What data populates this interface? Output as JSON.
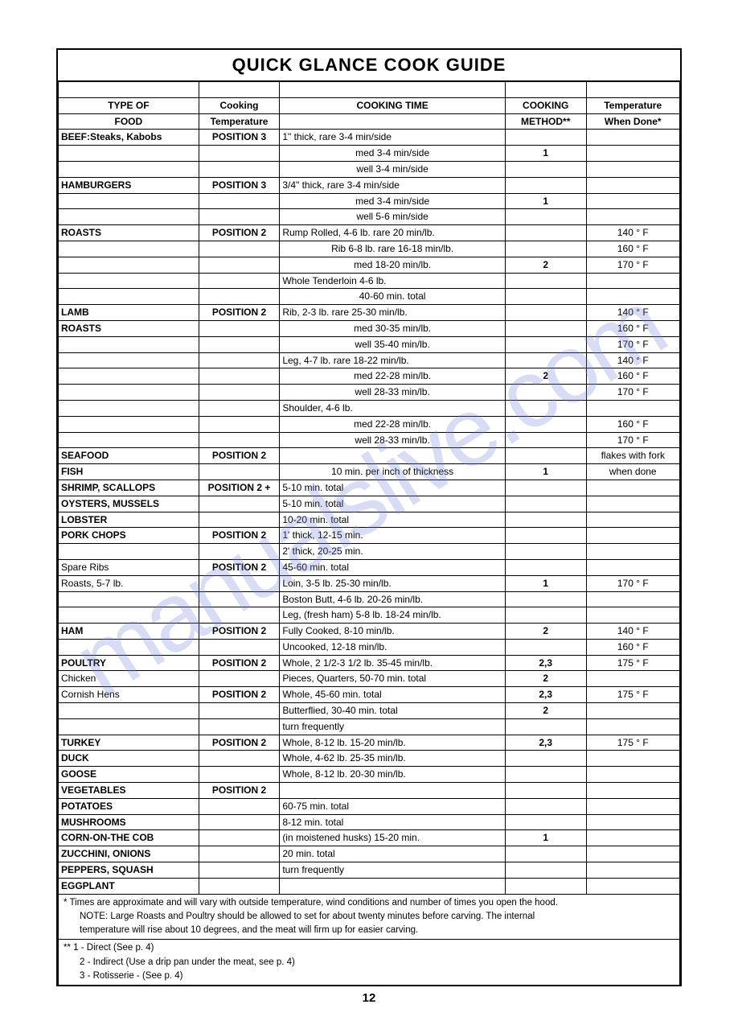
{
  "watermark": "manualslive.com",
  "title": "QUICK GLANCE COOK GUIDE",
  "page_number": "12",
  "table": {
    "col_widths": {
      "food": 165,
      "cooking": 95,
      "time": 265,
      "method": 95,
      "temp": 110
    },
    "header1": {
      "food": "TYPE OF",
      "cooking": "Cooking",
      "time": "COOKING TIME",
      "method": "COOKING",
      "temp": "Temperature"
    },
    "header2": {
      "food": "FOOD",
      "cooking": "Temperature",
      "time": "",
      "method": "METHOD**",
      "temp": "When Done*"
    },
    "rows": [
      {
        "food": "BEEF:Steaks, Kabobs",
        "food_bold": true,
        "cooking": "POSITION 3",
        "cooking_bold": true,
        "time": "1\" thick, rare 3-4 min/side",
        "time_align": "left",
        "method": "",
        "temp": ""
      },
      {
        "food": "",
        "cooking": "",
        "time": "med 3-4 min/side",
        "time_align": "center",
        "method": "1",
        "method_bold": true,
        "method_align": "center",
        "temp": ""
      },
      {
        "food": "",
        "cooking": "",
        "time": "well 3-4 min/side",
        "time_align": "center",
        "method": "",
        "temp": ""
      },
      {
        "food": "HAMBURGERS",
        "food_bold": true,
        "cooking": "POSITION 3",
        "cooking_bold": true,
        "time": "3/4\" thick, rare 3-4 min/side",
        "time_align": "left",
        "method": "",
        "temp": ""
      },
      {
        "food": "",
        "cooking": "",
        "time": "med 3-4 min/side",
        "time_align": "center",
        "method": "1",
        "method_bold": true,
        "method_align": "center",
        "temp": ""
      },
      {
        "food": "",
        "cooking": "",
        "time": "well 5-6 min/side",
        "time_align": "center",
        "method": "",
        "temp": ""
      },
      {
        "food": "ROASTS",
        "food_bold": true,
        "cooking": "POSITION 2",
        "cooking_bold": true,
        "time": "Rump Rolled, 4-6 lb. rare 20 min/lb.",
        "time_align": "left",
        "method": "",
        "temp": "140 ° F",
        "temp_align": "center"
      },
      {
        "food": "",
        "cooking": "",
        "time": "Rib 6-8 lb. rare 16-18 min/lb.",
        "time_align": "center",
        "method": "",
        "temp": "160 ° F",
        "temp_align": "center"
      },
      {
        "food": "",
        "cooking": "",
        "time": "med 18-20 min/lb.",
        "time_align": "center",
        "method": "2",
        "method_bold": true,
        "method_align": "center",
        "temp": "170 ° F",
        "temp_align": "center"
      },
      {
        "food": "",
        "cooking": "",
        "time": "Whole Tenderloin 4-6 lb.",
        "time_align": "left",
        "method": "",
        "temp": ""
      },
      {
        "food": "",
        "cooking": "",
        "time": "40-60 min. total",
        "time_align": "center",
        "method": "",
        "temp": ""
      },
      {
        "food": "LAMB",
        "food_bold": true,
        "cooking": "POSITION 2",
        "cooking_bold": true,
        "time": "Rib, 2-3 lb. rare 25-30 min/lb.",
        "time_align": "left",
        "method": "",
        "temp": "140 ° F",
        "temp_align": "center"
      },
      {
        "food": "ROASTS",
        "food_bold": true,
        "cooking": "",
        "time": "med 30-35 min/lb.",
        "time_align": "center",
        "method": "",
        "temp": "160 ° F",
        "temp_align": "center"
      },
      {
        "food": "",
        "cooking": "",
        "time": "well 35-40 min/lb.",
        "time_align": "center",
        "method": "",
        "temp": "170 ° F",
        "temp_align": "center"
      },
      {
        "food": "",
        "cooking": "",
        "time": "Leg, 4-7 lb. rare 18-22 min/lb.",
        "time_align": "left",
        "method": "",
        "temp": "140 ° F",
        "temp_align": "center"
      },
      {
        "food": "",
        "cooking": "",
        "time": "med 22-28 min/lb.",
        "time_align": "center",
        "method": "2",
        "method_bold": true,
        "method_align": "center",
        "temp": "160 ° F",
        "temp_align": "center"
      },
      {
        "food": "",
        "cooking": "",
        "time": "well 28-33 min/lb.",
        "time_align": "center",
        "method": "",
        "temp": "170 ° F",
        "temp_align": "center"
      },
      {
        "food": "",
        "cooking": "",
        "time": "Shoulder, 4-6 lb.",
        "time_align": "left",
        "method": "",
        "temp": ""
      },
      {
        "food": "",
        "cooking": "",
        "time": "med 22-28 min/lb.",
        "time_align": "center",
        "method": "",
        "temp": "160 ° F",
        "temp_align": "center"
      },
      {
        "food": "",
        "cooking": "",
        "time": "well 28-33 min/lb.",
        "time_align": "center",
        "method": "",
        "temp": "170 ° F",
        "temp_align": "center"
      },
      {
        "food": "SEAFOOD",
        "food_bold": true,
        "cooking": "POSITION 2",
        "cooking_bold": true,
        "time": "",
        "method": "",
        "temp": "flakes with fork",
        "temp_align": "center"
      },
      {
        "food": "FISH",
        "food_bold": true,
        "cooking": "",
        "time": "10 min. per inch of thickness",
        "time_align": "center",
        "method": "1",
        "method_bold": true,
        "method_align": "center",
        "temp": "when done",
        "temp_align": "center"
      },
      {
        "food": "SHRIMP, SCALLOPS",
        "food_bold": true,
        "cooking": "POSITION 2 +",
        "cooking_bold": true,
        "time": "5-10 min. total",
        "time_align": "left",
        "method": "",
        "temp": ""
      },
      {
        "food": "OYSTERS, MUSSELS",
        "food_bold": true,
        "cooking": "",
        "time": "5-10 min. total",
        "time_align": "left",
        "method": "",
        "temp": ""
      },
      {
        "food": "LOBSTER",
        "food_bold": true,
        "cooking": "",
        "time": "10-20 min. total",
        "time_align": "left",
        "method": "",
        "temp": ""
      },
      {
        "food": "PORK CHOPS",
        "food_bold": true,
        "cooking": "POSITION 2",
        "cooking_bold": true,
        "time": "1' thick, 12-15 min.",
        "time_align": "left",
        "method": "",
        "temp": ""
      },
      {
        "food": "",
        "cooking": "",
        "time": "2' thick, 20-25 min.",
        "time_align": "left",
        "method": "",
        "temp": ""
      },
      {
        "food": "Spare Ribs",
        "cooking": "POSITION 2",
        "cooking_bold": true,
        "time": "45-60 min. total",
        "time_align": "left",
        "method": "",
        "temp": ""
      },
      {
        "food": "Roasts, 5-7 lb.",
        "cooking": "",
        "time": "Loin, 3-5 lb. 25-30 min/lb.",
        "time_align": "left",
        "method": "1",
        "method_bold": true,
        "method_align": "center",
        "temp": "170 ° F",
        "temp_align": "center"
      },
      {
        "food": "",
        "cooking": "",
        "time": "Boston Butt, 4-6 lb. 20-26 min/lb.",
        "time_align": "left",
        "method": "",
        "temp": ""
      },
      {
        "food": "",
        "cooking": "",
        "time": "Leg, (fresh ham) 5-8 lb. 18-24 min/lb.",
        "time_align": "left",
        "method": "",
        "temp": ""
      },
      {
        "food": "HAM",
        "food_bold": true,
        "cooking": "POSITION 2",
        "cooking_bold": true,
        "time": "Fully Cooked, 8-10 min/lb.",
        "time_align": "left",
        "method": "2",
        "method_bold": true,
        "method_align": "center",
        "temp": "140 ° F",
        "temp_align": "center"
      },
      {
        "food": "",
        "cooking": "",
        "time": "Uncooked, 12-18 min/lb.",
        "time_align": "left",
        "method": "",
        "temp": "160 ° F",
        "temp_align": "center"
      },
      {
        "food": "POULTRY",
        "food_bold": true,
        "cooking": "POSITION 2",
        "cooking_bold": true,
        "time": "Whole, 2 1/2-3 1/2 lb. 35-45 min/lb.",
        "time_align": "left",
        "method": "2,3",
        "method_bold": true,
        "method_align": "center",
        "temp": "175 ° F",
        "temp_align": "center"
      },
      {
        "food": "Chicken",
        "cooking": "",
        "time": "Pieces, Quarters, 50-70 min. total",
        "time_align": "left",
        "method": "2",
        "method_bold": true,
        "method_align": "center",
        "temp": ""
      },
      {
        "food": "Cornish Hens",
        "cooking": "POSITION 2",
        "cooking_bold": true,
        "time": "Whole, 45-60 min. total",
        "time_align": "left",
        "method": "2,3",
        "method_bold": true,
        "method_align": "center",
        "temp": "175 ° F",
        "temp_align": "center"
      },
      {
        "food": "",
        "cooking": "",
        "time": "Butterflied, 30-40 min. total",
        "time_align": "left",
        "method": "2",
        "method_bold": true,
        "method_align": "center",
        "temp": ""
      },
      {
        "food": "",
        "cooking": "",
        "time": "turn frequently",
        "time_align": "left",
        "method": "",
        "temp": ""
      },
      {
        "food": "TURKEY",
        "food_bold": true,
        "cooking": "POSITION 2",
        "cooking_bold": true,
        "time": "Whole, 8-12 lb. 15-20 min/lb.",
        "time_align": "left",
        "method": "2,3",
        "method_bold": true,
        "method_align": "center",
        "temp": "175 ° F",
        "temp_align": "center"
      },
      {
        "food": "DUCK",
        "food_bold": true,
        "cooking": "",
        "time": "Whole, 4-62 lb. 25-35 min/lb.",
        "time_align": "left",
        "method": "",
        "temp": ""
      },
      {
        "food": "GOOSE",
        "food_bold": true,
        "cooking": "",
        "time": "Whole, 8-12 lb. 20-30 min/lb.",
        "time_align": "left",
        "method": "",
        "temp": ""
      },
      {
        "food": "VEGETABLES",
        "food_bold": true,
        "cooking": "POSITION 2",
        "cooking_bold": true,
        "time": "",
        "method": "",
        "temp": ""
      },
      {
        "food": "POTATOES",
        "food_bold": true,
        "cooking": "",
        "time": "60-75 min. total",
        "time_align": "left",
        "method": "",
        "temp": ""
      },
      {
        "food": "MUSHROOMS",
        "food_bold": true,
        "cooking": "",
        "time": "8-12 min. total",
        "time_align": "left",
        "method": "",
        "temp": ""
      },
      {
        "food": "CORN-ON-THE COB",
        "food_bold": true,
        "cooking": "",
        "time": "(in moistened husks) 15-20 min.",
        "time_align": "left",
        "method": "1",
        "method_bold": true,
        "method_align": "center",
        "temp": ""
      },
      {
        "food": "ZUCCHINI, ONIONS",
        "food_bold": true,
        "cooking": "",
        "time": "20 min. total",
        "time_align": "left",
        "method": "",
        "temp": ""
      },
      {
        "food": "PEPPERS, SQUASH",
        "food_bold": true,
        "cooking": "",
        "time": "turn frequently",
        "time_align": "left",
        "method": "",
        "temp": ""
      },
      {
        "food": "EGGPLANT",
        "food_bold": true,
        "cooking": "",
        "time": "",
        "method": "",
        "temp": ""
      }
    ]
  },
  "note_star": "*  Times are approximate and will vary with outside temperature, wind conditions and  number of times you open the hood.",
  "note_line2": "NOTE:  Large Roasts and Poultry should be allowed to set for about twenty minutes before carving.  The internal",
  "note_line3": "temperature will rise about 10 degrees, and the meat will firm up for easier carving.",
  "foot1": "** 1 - Direct (See p. 4)",
  "foot2": "2 - Indirect (Use a drip pan under the meat, see p. 4)",
  "foot3": "3 - Rotisserie - (See p. 4)",
  "colors": {
    "border": "#000000",
    "bg": "#ffffff",
    "watermark": "rgba(120,130,220,0.28)"
  }
}
